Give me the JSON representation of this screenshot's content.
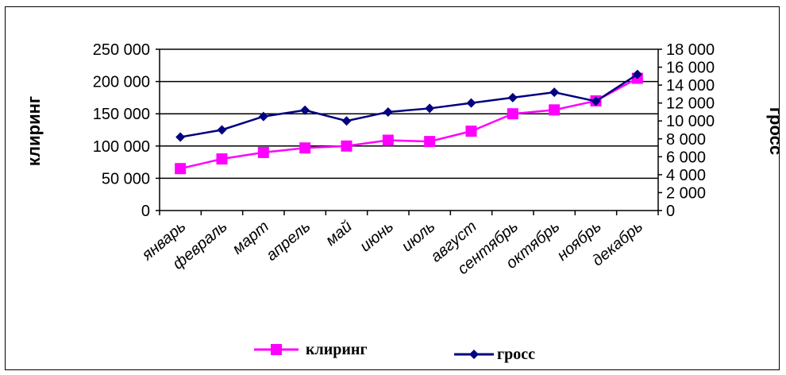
{
  "chart_data": {
    "type": "line",
    "categories": [
      "январь",
      "февраль",
      "март",
      "апрель",
      "май",
      "июнь",
      "июль",
      "август",
      "сентябрь",
      "октябрь",
      "ноябрь",
      "декабрь"
    ],
    "series": [
      {
        "name": "клиринг",
        "axis": "left",
        "color": "#ff00ff",
        "marker": "square",
        "values": [
          65000,
          80000,
          90000,
          97000,
          100000,
          109000,
          107000,
          123000,
          150000,
          156000,
          170000,
          205000
        ]
      },
      {
        "name": "гросс",
        "axis": "right",
        "color": "#000080",
        "marker": "diamond",
        "values": [
          8200,
          9000,
          10500,
          11200,
          10000,
          11000,
          11400,
          12000,
          12600,
          13200,
          12200,
          15200
        ]
      }
    ],
    "y_left": {
      "label": "клиринг",
      "ylim": [
        0,
        250000
      ],
      "ticks": [
        0,
        50000,
        100000,
        150000,
        200000,
        250000
      ],
      "tick_labels": [
        "0",
        "50 000",
        "100 000",
        "150 000",
        "200 000",
        "250 000"
      ]
    },
    "y_right": {
      "label": "гросс",
      "ylim": [
        0,
        18000
      ],
      "ticks": [
        0,
        2000,
        4000,
        6000,
        8000,
        10000,
        12000,
        14000,
        16000,
        18000
      ],
      "tick_labels": [
        "0",
        "2 000",
        "4 000",
        "6 000",
        "8 000",
        "10 000",
        "12 000",
        "14 000",
        "16 000",
        "18 000"
      ]
    },
    "grid": "horizontal-major-left",
    "legend": "bottom",
    "legend_entries": [
      "клиринг",
      "гросс"
    ]
  }
}
